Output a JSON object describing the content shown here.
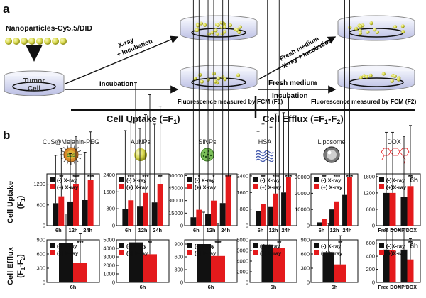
{
  "colors": {
    "control": "#111111",
    "xray": "#e41a1c",
    "nano": "#d8d84a",
    "dish_liquid": "#c6c9e9",
    "dish_top": "#e9eaf6"
  },
  "panel_a": {
    "label": "a",
    "nanoparticles_label": "Nanoparticles-Cy5.5/DID",
    "tumor_cell_label": "Tumor\nCell",
    "xray_arrow_line1": "X-ray",
    "xray_arrow_line2": "+ Incubation",
    "incubation_label": "Incubation",
    "fresh1_line1": "Fresh medium",
    "fresh1_line2": "+ X-ray + Incubation",
    "fresh2_line1": "Fresh medium",
    "fresh2_line2": "Incubation",
    "fcm1": "Fluorescence measured by FCM (F1)",
    "fcm2": "Fluorescence measured by FCM (F2)",
    "cell_uptake": "Cell Uptake (=F",
    "cell_uptake_sub": "1",
    "cell_uptake_end": ")",
    "cell_efflux": "Cell Efflux (=F",
    "cell_efflux_sub1": "1",
    "cell_efflux_mid": "-F",
    "cell_efflux_sub2": "2",
    "cell_efflux_end": ")"
  },
  "panel_b": {
    "label": "b",
    "row1_ylabel": "Cell Uptake",
    "row1_ylabel2": "(F",
    "row1_ylabel2_sub": "1",
    "row1_ylabel2_end": ")",
    "row2_ylabel": "Cell Efflux",
    "row2_ylabel2": "(F",
    "row2_ylabel2_sub1": "1",
    "row2_ylabel2_mid": "-F",
    "row2_ylabel2_sub2": "2",
    "row2_ylabel2_end": ")",
    "materials": [
      "CuS@Melanin-PEG",
      "AuNPs",
      "SiNPs",
      "HSA",
      "Liposome",
      "DOX"
    ],
    "legend_control": "(-) X-ray",
    "legend_xray": "(+) X-ray",
    "legend_control_dox": "(-)X-ray",
    "legend_xray_dox": "(+)X-ray",
    "dox_time": "6h"
  },
  "chart_data": [
    {
      "type": "bar",
      "panel": "CuS@Melanin-PEG uptake",
      "categories": [
        "6h",
        "12h",
        "24h"
      ],
      "yticks": [
        0,
        600,
        1200
      ],
      "ylim": [
        0,
        1500
      ],
      "series": [
        {
          "name": "(-) X-ray",
          "values": [
            650,
            700,
            740
          ]
        },
        {
          "name": "(+) X-ray",
          "values": [
            850,
            1200,
            1330
          ]
        }
      ],
      "significance": [
        "**",
        "***",
        "***"
      ]
    },
    {
      "type": "bar",
      "panel": "AuNPs uptake",
      "categories": [
        "6h",
        "12h",
        "24h"
      ],
      "yticks": [
        0,
        800,
        1600,
        2400
      ],
      "ylim": [
        0,
        2450
      ],
      "series": [
        {
          "name": "(-) X-ray",
          "values": [
            800,
            900,
            1100
          ]
        },
        {
          "name": "(+) X-ray",
          "values": [
            1200,
            1550,
            1950
          ]
        }
      ],
      "significance": [
        "***",
        "***",
        "**"
      ]
    },
    {
      "type": "bar",
      "panel": "SiNPs uptake",
      "categories": [
        "6h",
        "12h",
        "24h"
      ],
      "yticks": [
        0,
        15000,
        30000,
        45000,
        60000
      ],
      "ylim": [
        0,
        62000
      ],
      "series": [
        {
          "name": "(-) X-ray",
          "values": [
            10000,
            14000,
            27000
          ]
        },
        {
          "name": "(+) X-ray",
          "values": [
            19000,
            30000,
            60000
          ]
        }
      ],
      "significance": [
        "*",
        "*",
        "***"
      ]
    },
    {
      "type": "bar",
      "panel": "HSA uptake",
      "categories": [
        "6h",
        "12h",
        "24h"
      ],
      "yticks": [
        0,
        800,
        1600,
        2400
      ],
      "ylim": [
        0,
        2500
      ],
      "series": [
        {
          "name": "(-) X-ray",
          "values": [
            700,
            900,
            1600
          ]
        },
        {
          "name": "(+) X-ray",
          "values": [
            1050,
            1550,
            2350
          ]
        }
      ],
      "significance": [
        "**",
        "***",
        "***"
      ]
    },
    {
      "type": "bar",
      "panel": "Liposome uptake",
      "categories": [
        "6h",
        "12h",
        "24h"
      ],
      "yticks": [
        0,
        10000,
        20000,
        30000
      ],
      "ylim": [
        0,
        32000
      ],
      "series": [
        {
          "name": "(-) X-ray",
          "values": [
            2000,
            10000,
            19000
          ]
        },
        {
          "name": "(+) X-ray",
          "values": [
            4000,
            15000,
            30000
          ]
        }
      ],
      "significance": [
        "**",
        "***",
        "***"
      ]
    },
    {
      "type": "bar",
      "panel": "DOX uptake",
      "categories": [
        "Free DOX",
        "NP/DOX"
      ],
      "yticks": [
        0,
        600,
        1200,
        1800
      ],
      "ylim": [
        0,
        1900
      ],
      "series": [
        {
          "name": "(-)X-ray",
          "values": [
            1200,
            1050
          ]
        },
        {
          "name": "(+)X-ray",
          "values": [
            1200,
            1450
          ]
        }
      ],
      "significance": [
        "",
        "**"
      ]
    },
    {
      "type": "bar",
      "panel": "CuS@Melanin-PEG efflux",
      "categories": [
        "6h"
      ],
      "yticks": [
        0,
        300,
        600,
        900
      ],
      "ylim": [
        0,
        900
      ],
      "series": [
        {
          "name": "(-) X-ray",
          "values": [
            840
          ]
        },
        {
          "name": "(+) X-ray",
          "values": [
            420
          ]
        }
      ],
      "significance": [
        "***"
      ]
    },
    {
      "type": "bar",
      "panel": "AuNPs efflux",
      "categories": [
        "6h"
      ],
      "yticks": [
        0,
        1000,
        2000,
        3000,
        4000,
        5000
      ],
      "ylim": [
        0,
        5000
      ],
      "series": [
        {
          "name": "(-) X-ray",
          "values": [
            4700
          ]
        },
        {
          "name": "(+) X-ray",
          "values": [
            3300
          ]
        }
      ],
      "significance": [
        "**"
      ]
    },
    {
      "type": "bar",
      "panel": "SiNPs efflux",
      "categories": [
        "6h"
      ],
      "yticks": [
        0,
        300,
        600,
        900
      ],
      "ylim": [
        0,
        1000
      ],
      "series": [
        {
          "name": "(-) X-ray",
          "values": [
            900
          ]
        },
        {
          "name": "(+) X-ray",
          "values": [
            620
          ]
        }
      ],
      "significance": [
        "***"
      ]
    },
    {
      "type": "bar",
      "panel": "HSA efflux",
      "categories": [
        "6h"
      ],
      "yticks": [
        0,
        2000,
        4000,
        6000,
        8000
      ],
      "ylim": [
        0,
        8000
      ],
      "series": [
        {
          "name": "(-) X-ray",
          "values": [
            7100
          ]
        },
        {
          "name": "(+) X-ray",
          "values": [
            6400
          ]
        }
      ],
      "significance": [
        "**"
      ]
    },
    {
      "type": "bar",
      "panel": "Liposome efflux",
      "categories": [
        "6h"
      ],
      "yticks": [
        0,
        300,
        600,
        900
      ],
      "ylim": [
        0,
        900
      ],
      "series": [
        {
          "name": "(-) X-ray",
          "values": [
            640
          ]
        },
        {
          "name": "(+) X-ray",
          "values": [
            380
          ]
        }
      ],
      "significance": [
        "**"
      ]
    },
    {
      "type": "bar",
      "panel": "DOX efflux",
      "categories": [
        "Free DOX",
        "NP/DOX"
      ],
      "yticks": [
        0,
        200,
        400,
        600
      ],
      "ylim": [
        0,
        650
      ],
      "series": [
        {
          "name": "(-)X-ray",
          "values": [
            500,
            500
          ]
        },
        {
          "name": "(+)X-ray",
          "values": [
            490,
            350
          ]
        }
      ],
      "significance": [
        "",
        "**"
      ]
    }
  ]
}
